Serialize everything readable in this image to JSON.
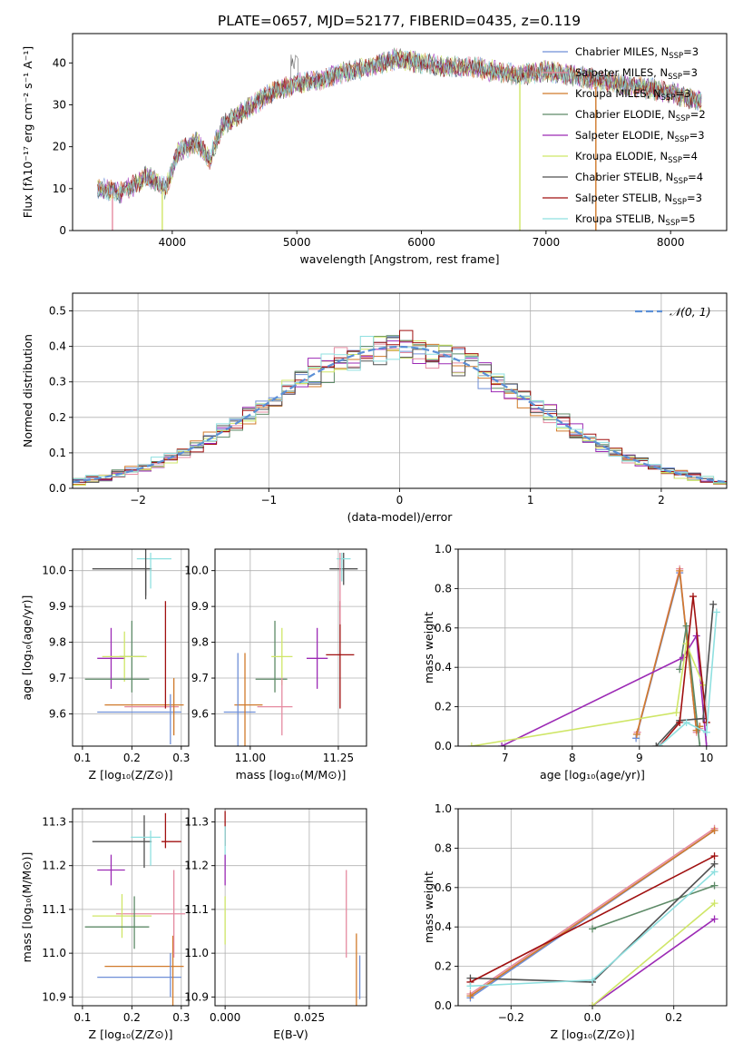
{
  "figure": {
    "title": "PLATE=0657, MJD=52177, FIBERID=0435, z=0.119"
  },
  "colors": {
    "chabrier_miles": "#6f8fd7",
    "salpeter_miles": "#e58aa0",
    "kroupa_miles": "#d07a2b",
    "chabrier_elodie": "#5d8a67",
    "salpeter_elodie": "#9c2ab5",
    "kroupa_elodie": "#cfe667",
    "chabrier_stelib": "#505050",
    "salpeter_stelib": "#a01010",
    "kroupa_stelib": "#8fe0e0",
    "gaussian": "#5b8fd6",
    "grid": "#b0b0b0"
  },
  "chart_data": [
    {
      "id": "spectrum",
      "type": "line",
      "title": "PLATE=0657, MJD=52177, FIBERID=0435, z=0.119",
      "xlabel": "wavelength [Angstrom, rest frame]",
      "ylabel": "Flux [fλ10⁻¹⁷ erg cm⁻² s⁻¹ A⁻¹]",
      "xlim": [
        3200,
        8450
      ],
      "ylim": [
        0,
        47
      ],
      "xticks": [
        4000,
        5000,
        6000,
        7000,
        8000
      ],
      "yticks": [
        0,
        10,
        20,
        30,
        40
      ],
      "grid": false,
      "legend_position": "upper-right",
      "continuum": {
        "x": [
          3400,
          3600,
          3800,
          3950,
          4050,
          4200,
          4300,
          4400,
          4600,
          4800,
          5000,
          5200,
          5400,
          5600,
          5800,
          6000,
          6200,
          6400,
          6600,
          6800,
          7000,
          7200,
          7400,
          7600,
          7800,
          8000,
          8200
        ],
        "y": [
          10,
          9,
          13,
          10,
          19,
          21,
          17,
          25,
          29,
          33,
          35,
          36,
          38,
          39,
          41,
          40,
          39,
          39,
          38,
          37,
          38,
          37,
          36,
          35,
          34,
          33,
          31
        ]
      },
      "drops": [
        {
          "series": "Salpeter MILES",
          "x": 3520
        },
        {
          "series": "Kroupa ELODIE",
          "x": 3920
        },
        {
          "series": "Kroupa ELODIE",
          "x": 6790
        },
        {
          "series": "Kroupa MILES",
          "x": 7400
        }
      ],
      "series": [
        {
          "name": "Chabrier MILES",
          "nssp": "3",
          "color_key": "chabrier_miles"
        },
        {
          "name": "Salpeter MILES",
          "nssp": "3",
          "color_key": "salpeter_miles"
        },
        {
          "name": "Kroupa MILES",
          "nssp": "3",
          "color_key": "kroupa_miles"
        },
        {
          "name": "Chabrier ELODIE",
          "nssp": "2",
          "color_key": "chabrier_elodie"
        },
        {
          "name": "Salpeter ELODIE",
          "nssp": "3",
          "color_key": "salpeter_elodie"
        },
        {
          "name": "Kroupa ELODIE",
          "nssp": "4",
          "color_key": "kroupa_elodie"
        },
        {
          "name": "Chabrier STELIB",
          "nssp": "4",
          "color_key": "chabrier_stelib"
        },
        {
          "name": "Salpeter STELIB",
          "nssp": "3",
          "color_key": "salpeter_stelib"
        },
        {
          "name": "Kroupa STELIB",
          "nssp": "5",
          "color_key": "kroupa_stelib"
        }
      ]
    },
    {
      "id": "residuals",
      "type": "histogram",
      "xlabel": "(data-model)/error",
      "ylabel": "Normed distribution",
      "xlim": [
        -2.5,
        2.5
      ],
      "ylim": [
        0,
        0.55
      ],
      "xticks": [
        -2,
        -1,
        0,
        1,
        2
      ],
      "yticks": [
        0.0,
        0.1,
        0.2,
        0.3,
        0.4,
        0.5
      ],
      "grid": true,
      "legend": "𝒩(0, 1)",
      "legend_position": "upper-right",
      "bin_width": 0.1,
      "bin_start": -2.5
    },
    {
      "id": "age_vs_z",
      "type": "errorbar",
      "xlabel": "Z [log₁₀(Z/Z⊙)]",
      "ylabel": "age  [log₁₀(age/yr)]",
      "xlim": [
        0.08,
        0.315
      ],
      "ylim": [
        9.51,
        10.06
      ],
      "xticks": [
        0.1,
        0.2,
        0.3
      ],
      "yticks": [
        9.6,
        9.7,
        9.8,
        9.9,
        10.0
      ],
      "grid": true,
      "points": [
        {
          "color_key": "chabrier_miles",
          "x": 0.215,
          "xerr": 0.085,
          "y": 9.605,
          "yerr": 0.0
        },
        {
          "color_key": "salpeter_miles",
          "x": 0.24,
          "xerr": 0.055,
          "y": 9.62,
          "yerr": 0.0
        },
        {
          "color_key": "kroupa_miles",
          "x": 0.225,
          "xerr": 0.08,
          "y": 9.625,
          "yerr": 0.0
        },
        {
          "color_key": "chabrier_elodie",
          "x": 0.2,
          "xerr": 0.025,
          "y": 9.76,
          "yerr": 0.1
        },
        {
          "color_key": "salpeter_elodie",
          "x": 0.158,
          "xerr": 0.028,
          "y": 9.755,
          "yerr": 0.085
        },
        {
          "color_key": "kroupa_elodie",
          "x": 0.185,
          "xerr": 0.045,
          "y": 9.76,
          "yerr": 0.07
        },
        {
          "color_key": "chabrier_stelib",
          "x": 0.18,
          "xerr": 0.06,
          "y": 10.005,
          "yerr": 0.0
        },
        {
          "color_key": "salpeter_stelib",
          "x": 0.268,
          "xerr": 0.0,
          "y": 9.765,
          "yerr": 0.15
        },
        {
          "color_key": "kroupa_stelib",
          "x": 0.245,
          "xerr": 0.035,
          "y": 10.033,
          "yerr": 0.0
        },
        {
          "color_key": "chabrier_miles",
          "x": 0.278,
          "xerr": 0.0,
          "y": 9.585,
          "yerr": 0.07
        },
        {
          "color_key": "kroupa_miles",
          "x": 0.285,
          "xerr": 0.0,
          "y": 9.62,
          "yerr": 0.08
        },
        {
          "color_key": "chabrier_stelib",
          "x": 0.228,
          "xerr": 0.0,
          "y": 10.0,
          "yerr": 0.08
        },
        {
          "color_key": "chabrier_elodie",
          "x": 0.108,
          "xerr": 0.0,
          "y": 9.7,
          "yerr": 0.0
        },
        {
          "color_key": "chabrier_elodie",
          "x": 0.17,
          "xerr": 0.065,
          "y": 9.697,
          "yerr": 0.0
        },
        {
          "color_key": "kroupa_stelib",
          "x": 0.238,
          "xerr": 0.0,
          "y": 10.0,
          "yerr": 0.05
        },
        {
          "color_key": "chabrier_stelib",
          "x": 0.228,
          "xerr": 0.0,
          "y": 9.97,
          "yerr": 0.04
        }
      ]
    },
    {
      "id": "age_vs_mass",
      "type": "errorbar",
      "xlabel": "mass [log₁₀(M/M⊙)]",
      "ylabel": "",
      "xlim": [
        10.9,
        11.33
      ],
      "ylim": [
        9.51,
        10.06
      ],
      "xticks": [
        11.0,
        11.25
      ],
      "yticks": [
        9.6,
        9.7,
        9.8,
        9.9,
        10.0
      ],
      "grid": true,
      "points": [
        {
          "color_key": "chabrier_miles",
          "x": 10.97,
          "xerr": 0.045,
          "y": 9.605,
          "yerr": 0.0
        },
        {
          "color_key": "salpeter_miles",
          "x": 11.07,
          "xerr": 0.05,
          "y": 9.62,
          "yerr": 0.0
        },
        {
          "color_key": "kroupa_miles",
          "x": 10.995,
          "xerr": 0.04,
          "y": 9.625,
          "yerr": 0.0
        },
        {
          "color_key": "chabrier_miles",
          "x": 10.965,
          "xerr": 0.0,
          "y": 9.62,
          "yerr": 0.15
        },
        {
          "color_key": "kroupa_miles",
          "x": 10.985,
          "xerr": 0.0,
          "y": 9.62,
          "yerr": 0.15
        },
        {
          "color_key": "chabrier_elodie",
          "x": 11.06,
          "xerr": 0.045,
          "y": 9.697,
          "yerr": 0.0
        },
        {
          "color_key": "chabrier_elodie",
          "x": 11.07,
          "xerr": 0.0,
          "y": 9.76,
          "yerr": 0.1
        },
        {
          "color_key": "kroupa_elodie",
          "x": 11.09,
          "xerr": 0.03,
          "y": 9.76,
          "yerr": 0.08
        },
        {
          "color_key": "salpeter_miles",
          "x": 11.09,
          "xerr": 0.0,
          "y": 9.62,
          "yerr": 0.08
        },
        {
          "color_key": "salpeter_elodie",
          "x": 11.19,
          "xerr": 0.03,
          "y": 9.755,
          "yerr": 0.085
        },
        {
          "color_key": "salpeter_stelib",
          "x": 11.255,
          "xerr": 0.04,
          "y": 9.765,
          "yerr": 0.15
        },
        {
          "color_key": "chabrier_stelib",
          "x": 11.265,
          "xerr": 0.04,
          "y": 10.005,
          "yerr": 0.045
        },
        {
          "color_key": "kroupa_stelib",
          "x": 11.265,
          "xerr": 0.02,
          "y": 10.033,
          "yerr": 0.0
        },
        {
          "color_key": "kroupa_stelib",
          "x": 11.26,
          "xerr": 0.0,
          "y": 10.01,
          "yerr": 0.04
        },
        {
          "color_key": "salpeter_miles",
          "x": 11.255,
          "xerr": 0.0,
          "y": 9.95,
          "yerr": 0.1
        }
      ]
    },
    {
      "id": "mass_weight_vs_age",
      "type": "line",
      "xlabel": "age  [log₁₀(age/yr)]",
      "ylabel": "mass weight",
      "xlim": [
        6.3,
        10.3
      ],
      "ylim": [
        0,
        1.0
      ],
      "xticks": [
        7,
        8,
        9,
        10
      ],
      "yticks": [
        0.0,
        0.2,
        0.4,
        0.6,
        0.8,
        1.0
      ],
      "grid": true,
      "series": [
        {
          "color_key": "chabrier_miles",
          "x": [
            8.95,
            9.6,
            9.85,
            9.9
          ],
          "y": [
            0.04,
            0.88,
            0.08,
            0.1
          ]
        },
        {
          "color_key": "salpeter_miles",
          "x": [
            8.97,
            9.6,
            9.85,
            9.9
          ],
          "y": [
            0.07,
            0.9,
            0.07,
            0.09
          ]
        },
        {
          "color_key": "kroupa_miles",
          "x": [
            8.96,
            9.6,
            9.85,
            9.9
          ],
          "y": [
            0.06,
            0.89,
            0.08,
            0.1
          ]
        },
        {
          "color_key": "chabrier_elodie",
          "x": [
            9.6,
            9.7,
            9.9
          ],
          "y": [
            0.39,
            0.61,
            0.0
          ]
        },
        {
          "color_key": "salpeter_elodie",
          "x": [
            6.95,
            9.65,
            9.85,
            10.0
          ],
          "y": [
            0.0,
            0.45,
            0.56,
            0.0
          ]
        },
        {
          "color_key": "kroupa_elodie",
          "x": [
            6.5,
            9.55,
            9.7,
            9.95
          ],
          "y": [
            0.0,
            0.17,
            0.52,
            0.31
          ]
        },
        {
          "color_key": "chabrier_stelib",
          "x": [
            9.25,
            9.6,
            9.95,
            10.1
          ],
          "y": [
            0.0,
            0.13,
            0.14,
            0.72
          ]
        },
        {
          "color_key": "salpeter_stelib",
          "x": [
            9.3,
            9.6,
            9.8,
            10.0
          ],
          "y": [
            0.0,
            0.12,
            0.76,
            0.12
          ]
        },
        {
          "color_key": "kroupa_stelib",
          "x": [
            9.3,
            9.7,
            10.0,
            10.15
          ],
          "y": [
            0.0,
            0.12,
            0.07,
            0.68
          ]
        }
      ]
    },
    {
      "id": "mass_vs_z",
      "type": "errorbar",
      "xlabel": "Z [log₁₀(Z/Z⊙)]",
      "ylabel": "mass [log₁₀(M/M⊙)]",
      "xlim": [
        0.08,
        0.315
      ],
      "ylim": [
        10.88,
        11.33
      ],
      "xticks": [
        0.1,
        0.2,
        0.3
      ],
      "yticks": [
        10.9,
        11.0,
        11.1,
        11.2,
        11.3
      ],
      "grid": true,
      "points": [
        {
          "color_key": "chabrier_miles",
          "x": 0.215,
          "xerr": 0.085,
          "y": 10.945,
          "yerr": 0.0
        },
        {
          "color_key": "kroupa_miles",
          "x": 0.225,
          "xerr": 0.08,
          "y": 10.97,
          "yerr": 0.0
        },
        {
          "color_key": "kroupa_miles",
          "x": 0.283,
          "xerr": 0.0,
          "y": 10.96,
          "yerr": 0.08
        },
        {
          "color_key": "salpeter_miles",
          "x": 0.238,
          "xerr": 0.07,
          "y": 11.09,
          "yerr": 0.0
        },
        {
          "color_key": "salpeter_miles",
          "x": 0.285,
          "xerr": 0.0,
          "y": 11.09,
          "yerr": 0.1
        },
        {
          "color_key": "chabrier_miles",
          "x": 0.278,
          "xerr": 0.0,
          "y": 10.95,
          "yerr": 0.05
        },
        {
          "color_key": "kroupa_elodie",
          "x": 0.18,
          "xerr": 0.06,
          "y": 11.085,
          "yerr": 0.05
        },
        {
          "color_key": "chabrier_elodie",
          "x": 0.17,
          "xerr": 0.065,
          "y": 11.06,
          "yerr": 0.0
        },
        {
          "color_key": "chabrier_elodie",
          "x": 0.205,
          "xerr": 0.0,
          "y": 11.07,
          "yerr": 0.06
        },
        {
          "color_key": "salpeter_elodie",
          "x": 0.158,
          "xerr": 0.028,
          "y": 11.19,
          "yerr": 0.035
        },
        {
          "color_key": "chabrier_stelib",
          "x": 0.18,
          "xerr": 0.06,
          "y": 11.255,
          "yerr": 0.0
        },
        {
          "color_key": "chabrier_stelib",
          "x": 0.225,
          "xerr": 0.0,
          "y": 11.255,
          "yerr": 0.06
        },
        {
          "color_key": "kroupa_stelib",
          "x": 0.228,
          "xerr": 0.03,
          "y": 11.265,
          "yerr": 0.0
        },
        {
          "color_key": "kroupa_stelib",
          "x": 0.238,
          "xerr": 0.0,
          "y": 11.24,
          "yerr": 0.04
        },
        {
          "color_key": "salpeter_stelib",
          "x": 0.28,
          "xerr": 0.02,
          "y": 11.255,
          "yerr": 0.0
        },
        {
          "color_key": "salpeter_stelib",
          "x": 0.268,
          "xerr": 0.0,
          "y": 11.28,
          "yerr": 0.04
        }
      ]
    },
    {
      "id": "mass_vs_ebv",
      "type": "errorbar",
      "xlabel": "E(B-V)",
      "ylabel": "",
      "xlim": [
        -0.003,
        0.042
      ],
      "ylim": [
        10.88,
        11.33
      ],
      "xticks": [
        0.0,
        0.025
      ],
      "xtick_labels": [
        "0.000",
        "0.025"
      ],
      "yticks": [
        10.9,
        11.0,
        11.1,
        11.2,
        11.3
      ],
      "grid": true,
      "points": [
        {
          "color_key": "salpeter_stelib",
          "x": 0.0,
          "xerr": 0.0,
          "y": 11.285,
          "yerr": 0.04
        },
        {
          "color_key": "kroupa_stelib",
          "x": 0.0,
          "xerr": 0.0,
          "y": 11.24,
          "yerr": 0.05
        },
        {
          "color_key": "salpeter_elodie",
          "x": 0.0,
          "xerr": 0.0,
          "y": 11.19,
          "yerr": 0.035
        },
        {
          "color_key": "kroupa_elodie",
          "x": 0.0,
          "xerr": 0.0,
          "y": 11.075,
          "yerr": 0.055
        },
        {
          "color_key": "salpeter_miles",
          "x": 0.036,
          "xerr": 0.0,
          "y": 11.09,
          "yerr": 0.1
        },
        {
          "color_key": "kroupa_miles",
          "x": 0.039,
          "xerr": 0.0,
          "y": 10.96,
          "yerr": 0.085
        },
        {
          "color_key": "chabrier_miles",
          "x": 0.04,
          "xerr": 0.0,
          "y": 10.945,
          "yerr": 0.05
        }
      ]
    },
    {
      "id": "mass_weight_vs_z",
      "type": "line",
      "xlabel": "Z [log₁₀(Z/Z⊙)]",
      "ylabel": "mass weight",
      "xlim": [
        -0.33,
        0.33
      ],
      "ylim": [
        0,
        1.0
      ],
      "xticks": [
        -0.2,
        0.0,
        0.2
      ],
      "xtick_labels": [
        "−0.2",
        "0.0",
        "0.2"
      ],
      "yticks": [
        0.0,
        0.2,
        0.4,
        0.6,
        0.8,
        1.0
      ],
      "grid": true,
      "series": [
        {
          "color_key": "chabrier_miles",
          "x": [
            -0.3,
            0.3
          ],
          "y": [
            0.04,
            0.89
          ]
        },
        {
          "color_key": "salpeter_miles",
          "x": [
            -0.3,
            0.3
          ],
          "y": [
            0.06,
            0.9
          ]
        },
        {
          "color_key": "kroupa_miles",
          "x": [
            -0.3,
            0.3
          ],
          "y": [
            0.05,
            0.89
          ]
        },
        {
          "color_key": "chabrier_elodie",
          "x": [
            0.0,
            0.3
          ],
          "y": [
            0.39,
            0.61
          ]
        },
        {
          "color_key": "salpeter_elodie",
          "x": [
            0.0,
            0.3
          ],
          "y": [
            0.0,
            0.44
          ]
        },
        {
          "color_key": "kroupa_elodie",
          "x": [
            0.0,
            0.3
          ],
          "y": [
            0.0,
            0.52
          ]
        },
        {
          "color_key": "chabrier_stelib",
          "x": [
            -0.3,
            0.0,
            0.3
          ],
          "y": [
            0.14,
            0.12,
            0.72
          ]
        },
        {
          "color_key": "salpeter_stelib",
          "x": [
            -0.3,
            0.3
          ],
          "y": [
            0.12,
            0.76
          ]
        },
        {
          "color_key": "kroupa_stelib",
          "x": [
            -0.3,
            0.0,
            0.3
          ],
          "y": [
            0.1,
            0.13,
            0.68
          ]
        }
      ]
    }
  ]
}
